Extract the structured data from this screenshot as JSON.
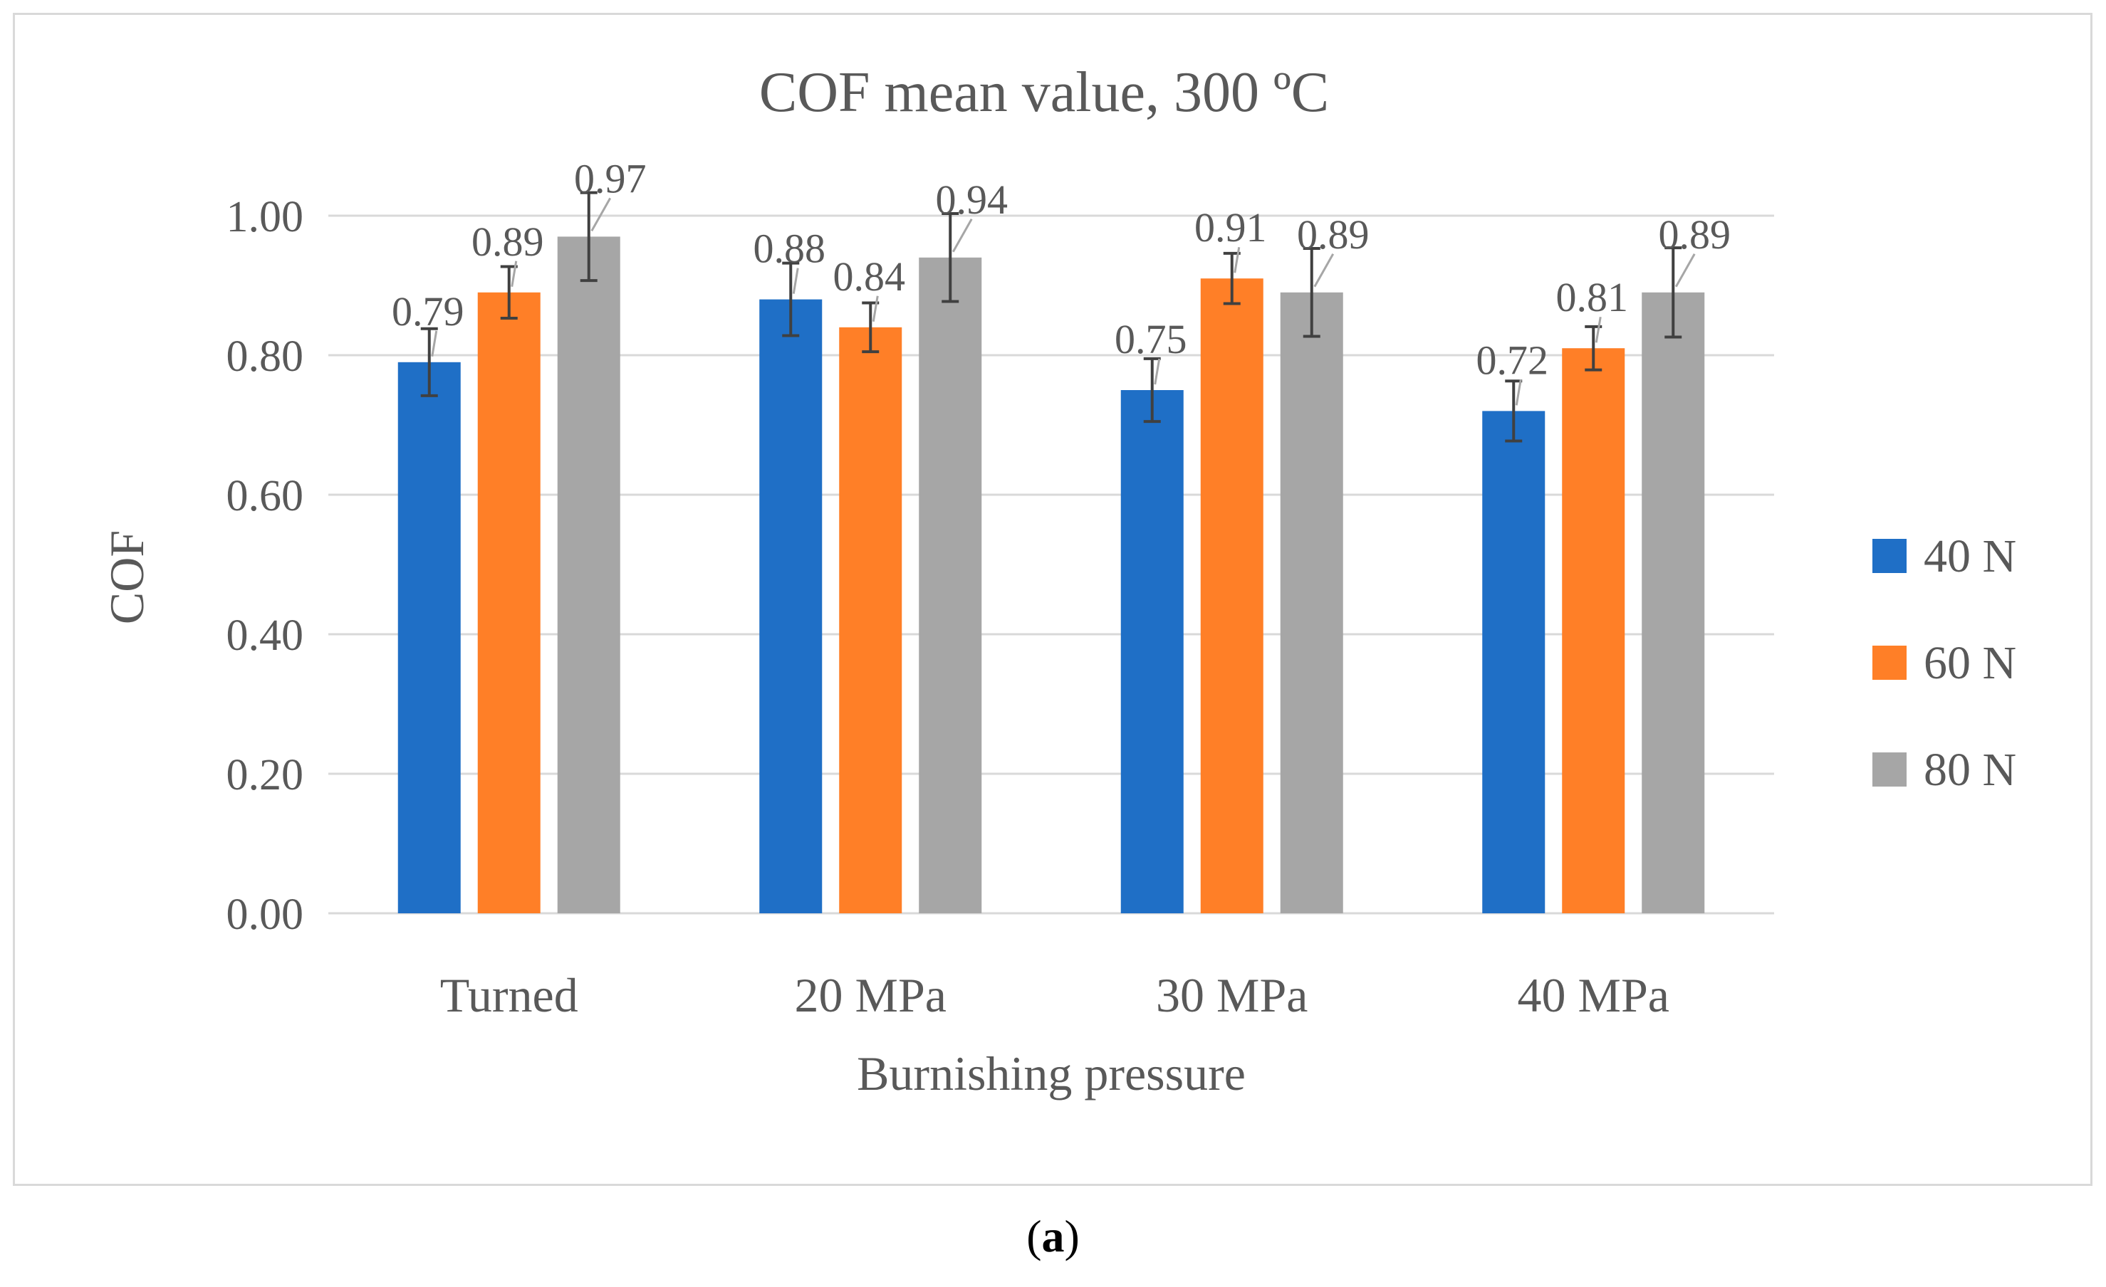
{
  "caption": {
    "open": "(",
    "letter": "a",
    "close": ")"
  },
  "chart_data": {
    "type": "bar",
    "title": "COF mean value, 300 ºC",
    "xlabel": "Burnishing pressure",
    "ylabel": "COF",
    "categories": [
      "Turned",
      "20 MPa",
      "30 MPa",
      "40 MPa"
    ],
    "ylim": [
      0,
      1.0
    ],
    "yticks": [
      "0.00",
      "0.20",
      "0.40",
      "0.60",
      "0.80",
      "1.00"
    ],
    "grid": true,
    "legend_position": "right",
    "series": [
      {
        "name": "40 N",
        "color": "#1f6fc6",
        "values": [
          0.79,
          0.88,
          0.75,
          0.72
        ],
        "labels": [
          "0.79",
          "0.88",
          "0.75",
          "0.72"
        ],
        "errors": [
          0.048,
          0.052,
          0.045,
          0.043
        ]
      },
      {
        "name": "60 N",
        "color": "#ff7f27",
        "values": [
          0.89,
          0.84,
          0.91,
          0.81
        ],
        "labels": [
          "0.89",
          "0.84",
          "0.91",
          "0.81"
        ],
        "errors": [
          0.037,
          0.035,
          0.036,
          0.031
        ]
      },
      {
        "name": "80 N",
        "color": "#a6a6a6",
        "values": [
          0.97,
          0.94,
          0.89,
          0.89
        ],
        "labels": [
          "0.97",
          "0.94",
          "0.89",
          "0.89"
        ],
        "errors": [
          0.063,
          0.063,
          0.063,
          0.064
        ]
      }
    ]
  }
}
